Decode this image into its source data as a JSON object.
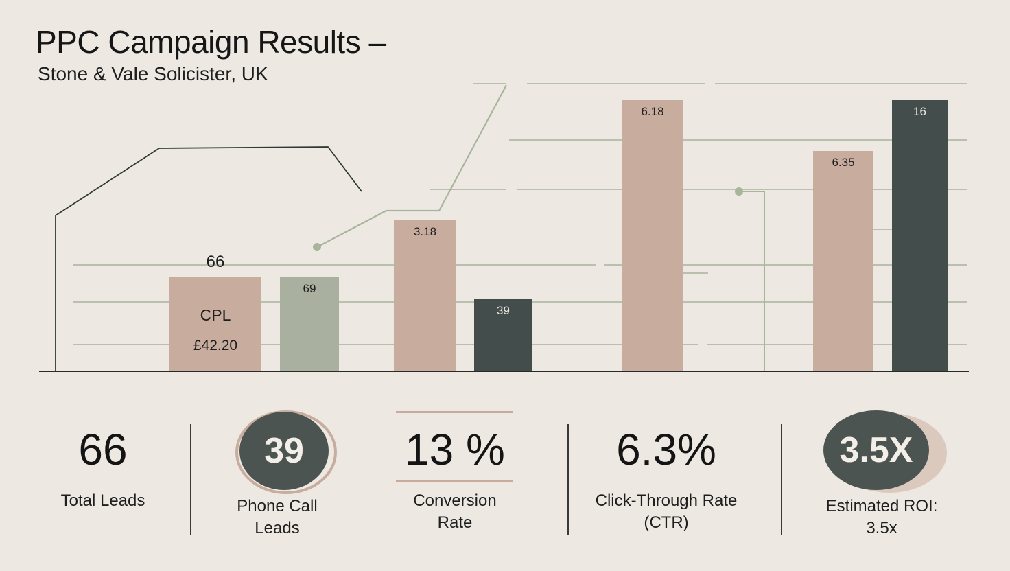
{
  "header": {
    "title": "PPC Campaign Results –",
    "subtitle": "Stone & Vale  Solicister, UK"
  },
  "colors": {
    "background": "#ede9e2",
    "bar_tan": "#c8ad9e",
    "bar_sage": "#a9b09f",
    "bar_dark": "#434d4c",
    "grid": "#a8b49c",
    "line": "#2f3a37"
  },
  "chart_data": {
    "type": "bar",
    "bars": [
      {
        "value": 66,
        "label": "66",
        "inner_label": "CPL",
        "inner_value": "£42.20",
        "color": "tan"
      },
      {
        "value": 69,
        "label": "69",
        "color": "sage"
      },
      {
        "value": 3.18,
        "label": "3.18",
        "color": "tan"
      },
      {
        "value": 39,
        "label": "39",
        "color": "dark"
      },
      {
        "value": 6.18,
        "label": "6.18",
        "color": "tan"
      },
      {
        "value": 6.35,
        "label": "6.35",
        "color": "tan"
      },
      {
        "value": 16,
        "label": "16",
        "color": "dark"
      }
    ],
    "grid": true,
    "legend": "none"
  },
  "kpis": [
    {
      "value": "66",
      "label": "Total  Leads",
      "style": "plain"
    },
    {
      "value": "39",
      "label": "Phone Call\nLeads",
      "style": "bubble"
    },
    {
      "value": "13 %",
      "label": "Conversion\nRate",
      "style": "ruled"
    },
    {
      "value": "6.3%",
      "label": "Click-Through Rate\n(CTR)",
      "style": "plain"
    },
    {
      "value": "3.5X",
      "label": "Estimated ROI:\n3.5x",
      "style": "bubble"
    }
  ]
}
